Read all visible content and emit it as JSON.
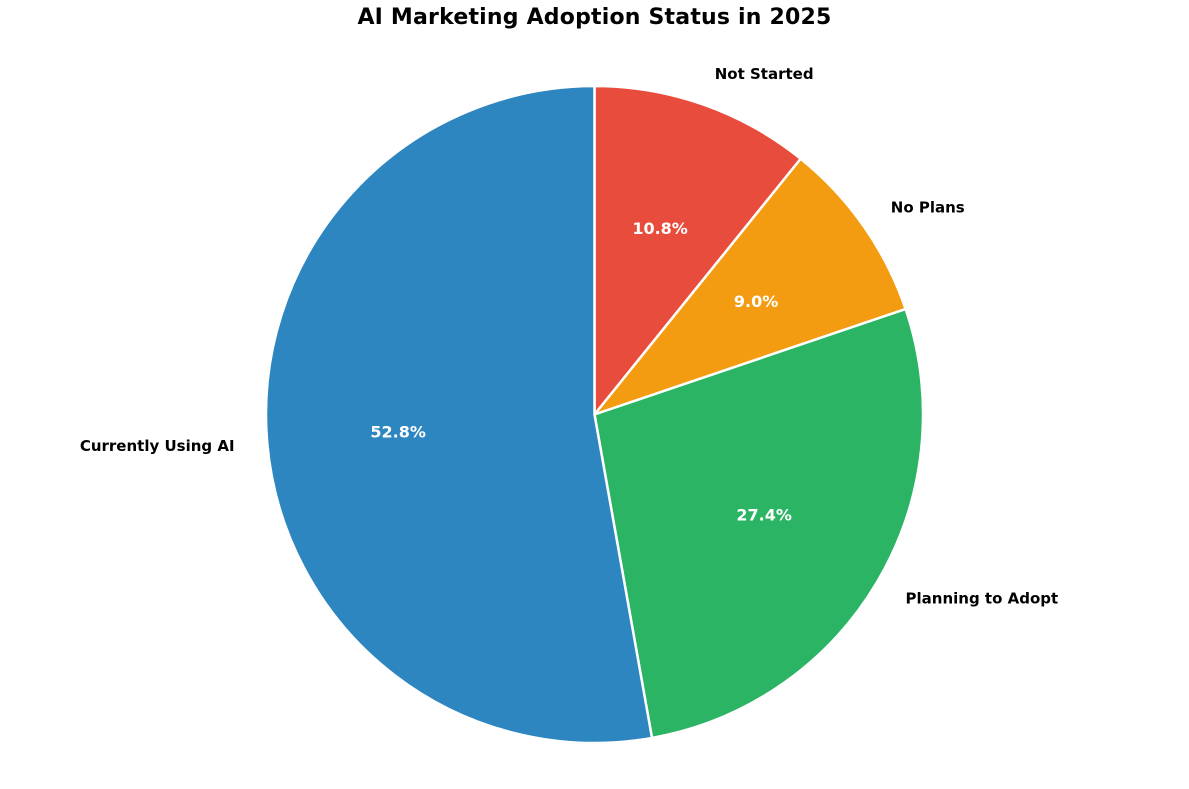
{
  "chart_data": {
    "type": "pie",
    "title": "AI Marketing Adoption Status in 2025",
    "categories": [
      "Not Started",
      "No Plans",
      "Planning to Adopt",
      "Currently Using AI"
    ],
    "values": [
      10.8,
      9.0,
      27.4,
      52.8
    ],
    "slices": [
      {
        "label": "Not Started",
        "value": 10.8,
        "pct_label": "10.8%",
        "color": "#E74C3C"
      },
      {
        "label": "No Plans",
        "value": 9.0,
        "pct_label": "9.0%",
        "color": "#F39C12"
      },
      {
        "label": "Planning to Adopt",
        "value": 27.4,
        "pct_label": "27.4%",
        "color": "#2BB463"
      },
      {
        "label": "Currently Using AI",
        "value": 52.8,
        "pct_label": "52.8%",
        "color": "#2E86C1"
      }
    ],
    "start_angle_deg": 90,
    "direction": "clockwise",
    "label_distance": 1.1,
    "pct_distance": 0.6,
    "wedge_edge_color": "#FFFFFF",
    "wedge_edge_width": 2.5,
    "label_text_color": "#000000",
    "pct_text_color": "#FFFFFF",
    "background": "#FFFFFF",
    "legend": "none"
  }
}
